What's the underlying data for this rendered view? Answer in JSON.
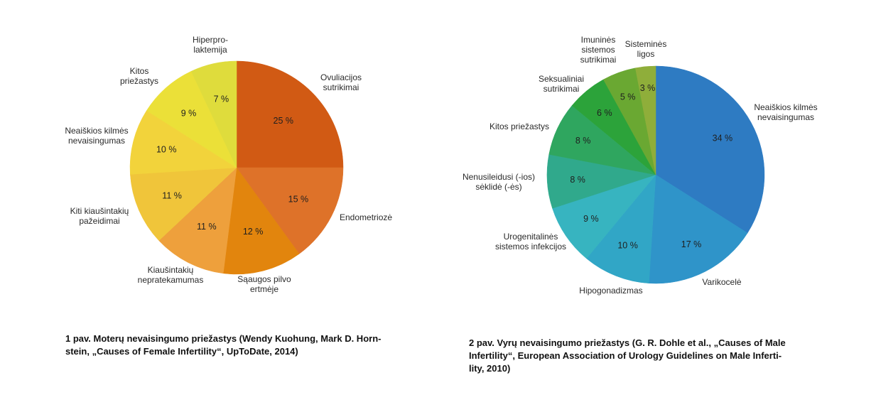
{
  "chart_data": [
    {
      "type": "pie",
      "title": "",
      "caption": "1 pav. Moterų nevaisingumo priežastys (Wendy Kuohung, Mark D. Horn-\nstein, „Causes of Female Infertility“, UpToDate, 2014)",
      "slices": [
        {
          "label": "Ovuliacijos\nsutrikimai",
          "value": 25,
          "value_label": "25 %",
          "color": "#d15a14"
        },
        {
          "label": "Endometriozė",
          "value": 15,
          "value_label": "15 %",
          "color": "#de7229"
        },
        {
          "label": "Sąaugos pilvo\nertmėje",
          "value": 12,
          "value_label": "12 %",
          "color": "#e2850d"
        },
        {
          "label": "Kiaušintakių\nnepratekamumas",
          "value": 11,
          "value_label": "11 %",
          "color": "#eea03c"
        },
        {
          "label": "Kiti kiaušintakių\npažeidimai",
          "value": 11,
          "value_label": "11 %",
          "color": "#f0c53a"
        },
        {
          "label": "Neaiškios kilmės\nnevaisingumas",
          "value": 10,
          "value_label": "10 %",
          "color": "#f2d33b"
        },
        {
          "label": "Kitos\npriežastys",
          "value": 9,
          "value_label": "9 %",
          "color": "#ebe038"
        },
        {
          "label": "Hiperpro-\nlaktemija",
          "value": 7,
          "value_label": "7 %",
          "color": "#dfdc3c"
        }
      ]
    },
    {
      "type": "pie",
      "title": "",
      "caption": "2 pav. Vyrų nevaisingumo priežastys (G. R. Dohle et al., „Causes of Male\nInfertility“, European Association of Urology Guidelines on Male Inferti-\nlity, 2010)",
      "slices": [
        {
          "label": "Neaiškios kilmės\nnevaisingumas",
          "value": 34,
          "value_label": "34 %",
          "color": "#2e7bc2"
        },
        {
          "label": "Varikocelė",
          "value": 17,
          "value_label": "17 %",
          "color": "#2f94c9"
        },
        {
          "label": "Hipogonadizmas",
          "value": 10,
          "value_label": "10 %",
          "color": "#31a6c6"
        },
        {
          "label": "Urogenitalinės\nsistemos infekcijos",
          "value": 9,
          "value_label": "9 %",
          "color": "#37b4c0"
        },
        {
          "label": "Nenusileidusi (-ios)\nsėklidė (-ės)",
          "value": 8,
          "value_label": "8 %",
          "color": "#30a98c"
        },
        {
          "label": "Kitos priežastys",
          "value": 8,
          "value_label": "8 %",
          "color": "#2fa65f"
        },
        {
          "label": "Seksualiniai\nsutrikimai",
          "value": 6,
          "value_label": "6 %",
          "color": "#2ca33a"
        },
        {
          "label": "Imuninės\nsistemos\nsutrikimai",
          "value": 5,
          "value_label": "5 %",
          "color": "#6aa832"
        },
        {
          "label": "Sisteminės\nligos",
          "value": 3,
          "value_label": "3 %",
          "color": "#8fae3a"
        }
      ]
    }
  ]
}
